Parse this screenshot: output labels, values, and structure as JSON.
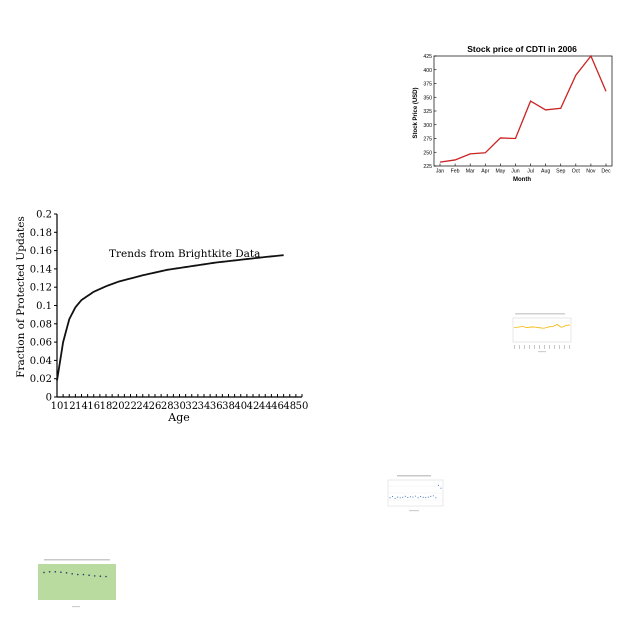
{
  "chart_data": [
    {
      "type": "line",
      "title": "Stock price of CDTI in 2006",
      "xlabel": "Month",
      "ylabel": "Stock Price (USD)",
      "categories": [
        "Jan",
        "Feb",
        "Mar",
        "Apr",
        "May",
        "Jun",
        "Jul",
        "Aug",
        "Sep",
        "Oct",
        "Nov",
        "Dec"
      ],
      "series": [
        {
          "values": [
            232,
            236,
            247,
            249,
            276,
            275,
            343,
            327,
            330,
            390,
            425,
            361
          ]
        }
      ],
      "ylim": [
        225,
        425
      ],
      "yticks": [
        225,
        250,
        275,
        300,
        325,
        350,
        375,
        400,
        425
      ],
      "grid": false,
      "line_color": "#cc2222"
    },
    {
      "type": "line",
      "title": "",
      "annotation": "Trends from Brightkite Data",
      "xlabel": "Age",
      "ylabel": "Fraction of Protected Updates",
      "x": [
        10,
        11,
        12,
        13,
        14,
        16,
        18,
        20,
        24,
        28,
        32,
        36,
        40,
        44,
        47
      ],
      "series": [
        {
          "values": [
            0.018,
            0.06,
            0.085,
            0.098,
            0.106,
            0.115,
            0.121,
            0.126,
            0.133,
            0.139,
            0.143,
            0.147,
            0.15,
            0.153,
            0.155
          ]
        }
      ],
      "xlim": [
        10,
        50
      ],
      "ylim": [
        0,
        0.2
      ],
      "xticks": [
        10,
        12,
        14,
        16,
        18,
        20,
        22,
        24,
        26,
        28,
        30,
        32,
        34,
        36,
        38,
        40,
        42,
        44,
        46,
        48,
        50
      ],
      "yticks": [
        0,
        0.02,
        0.04,
        0.06,
        0.08,
        0.1,
        0.12,
        0.14,
        0.16,
        0.18,
        0.2
      ],
      "grid": false,
      "line_color": "#111111"
    },
    {
      "type": "line",
      "series": [
        {
          "values": [
            0.62,
            0.63,
            0.66,
            0.61,
            0.64,
            0.63,
            0.6,
            0.58,
            0.64,
            0.66,
            0.75,
            0.62,
            0.7,
            0.73
          ]
        }
      ],
      "ylim": [
        0,
        1
      ],
      "line_color": "#f4b400"
    },
    {
      "type": "scatter",
      "series": [
        {
          "values": [
            0.3,
            0.35,
            0.28,
            0.33,
            0.3,
            0.32,
            0.36,
            0.31,
            0.34,
            0.33,
            0.37,
            0.3,
            0.35,
            0.32,
            0.31,
            0.33,
            0.36,
            0.38,
            0.3,
            0.82,
            0.7
          ]
        }
      ],
      "ylim": [
        0,
        1
      ],
      "point_color": "#3b6fb6"
    },
    {
      "type": "scatter",
      "series": [
        {
          "values": [
            0.78,
            0.8,
            0.8,
            0.79,
            0.77,
            0.74,
            0.72,
            0.72,
            0.7,
            0.68,
            0.67,
            0.66
          ]
        }
      ],
      "ylim": [
        0,
        1
      ],
      "background": "#b9dba0",
      "point_color": "#1f3f5f"
    }
  ]
}
